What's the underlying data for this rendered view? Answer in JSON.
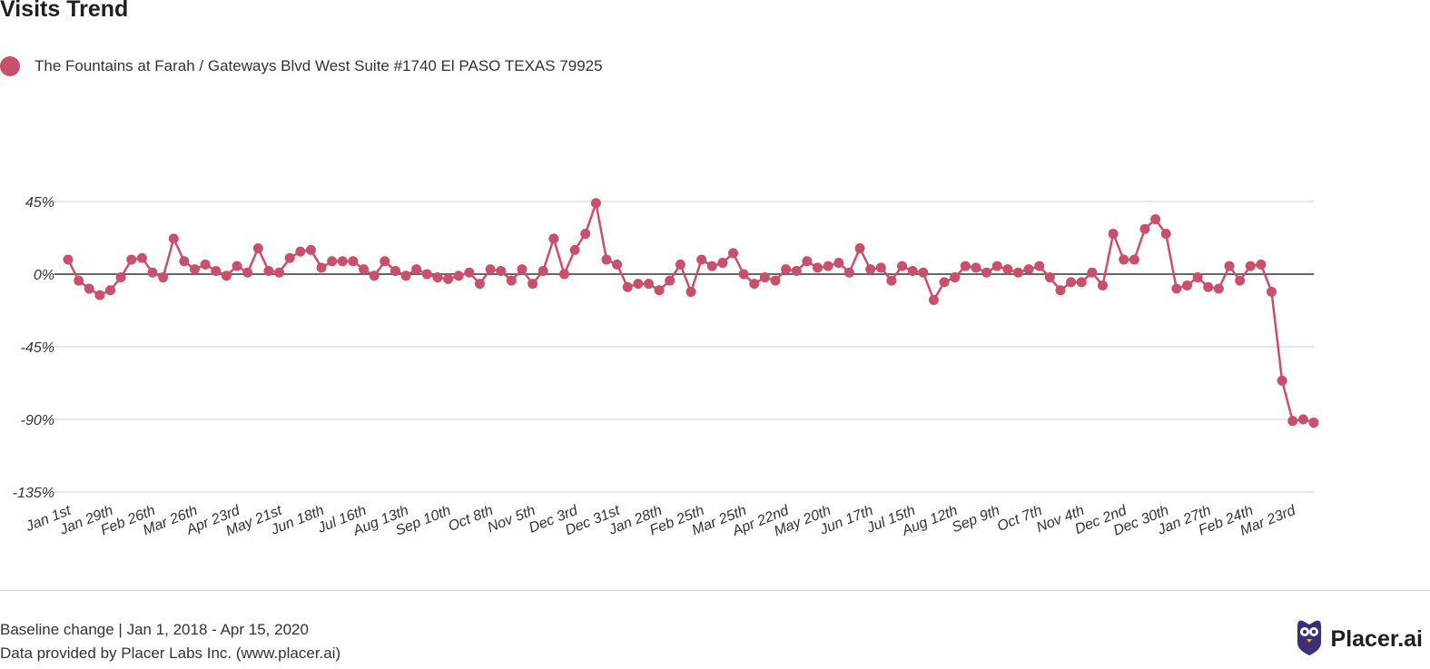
{
  "header": {
    "title": "Visits Trend"
  },
  "legend": {
    "label": "The Fountains at Farah / Gateways Blvd West Suite #1740 El PASO TEXAS 79925",
    "color": "#c8506a"
  },
  "footer": {
    "line1": "Baseline change | Jan 1, 2018 - Apr 15, 2020",
    "line2": "Data provided by Placer Labs Inc. (www.placer.ai)",
    "brand": "Placer.ai",
    "brand_icon": "owl-logo-icon",
    "brand_color": "#3b2f7a"
  },
  "chart_data": {
    "type": "line",
    "title": "Visits Trend",
    "xlabel": "",
    "ylabel": "",
    "ylim": [
      -135,
      45
    ],
    "yticks": [
      45,
      0,
      -45,
      -90,
      -135
    ],
    "ytick_labels": [
      "45%",
      "0%",
      "-45%",
      "-90%",
      "-135%"
    ],
    "xtick_labels": [
      "Jan 1st",
      "Jan 29th",
      "Feb 26th",
      "Mar 26th",
      "Apr 23rd",
      "May 21st",
      "Jun 18th",
      "Jul 16th",
      "Aug 13th",
      "Sep 10th",
      "Oct 8th",
      "Nov 5th",
      "Dec 3rd",
      "Dec 31st",
      "Jan 28th",
      "Feb 25th",
      "Mar 25th",
      "Apr 22nd",
      "May 20th",
      "Jun 17th",
      "Jul 15th",
      "Aug 12th",
      "Sep 9th",
      "Oct 7th",
      "Nov 4th",
      "Dec 2nd",
      "Dec 30th",
      "Jan 27th",
      "Feb 24th",
      "Mar 23rd"
    ],
    "xtick_every": 4,
    "grid": true,
    "zero_line": true,
    "color": "#c8506a",
    "series": [
      {
        "name": "The Fountains at Farah / Gateways Blvd West Suite #1740 El PASO TEXAS 79925",
        "values": [
          9,
          -4,
          -9,
          -13,
          -10,
          -2,
          9,
          10,
          1,
          -2,
          22,
          8,
          3,
          6,
          2,
          -1,
          5,
          1,
          16,
          2,
          1,
          10,
          14,
          15,
          4,
          8,
          8,
          8,
          3,
          -1,
          8,
          2,
          -1,
          3,
          0,
          -2,
          -3,
          -1,
          1,
          -6,
          3,
          2,
          -4,
          3,
          -6,
          2,
          22,
          0,
          15,
          25,
          44,
          9,
          6,
          -8,
          -6,
          -6,
          -10,
          -4,
          6,
          -11,
          9,
          5,
          7,
          13,
          0,
          -6,
          -2,
          -4,
          3,
          2,
          8,
          4,
          5,
          7,
          1,
          16,
          3,
          4,
          -4,
          5,
          2,
          1,
          -16,
          -5,
          -2,
          5,
          4,
          1,
          5,
          3,
          1,
          3,
          5,
          -2,
          -10,
          -5,
          -5,
          1,
          -7,
          25,
          9,
          9,
          28,
          34,
          25,
          -9,
          -7,
          -2,
          -8,
          -9,
          5,
          -4,
          5,
          6,
          -11,
          -66,
          -91,
          -90,
          -92
        ]
      }
    ]
  }
}
